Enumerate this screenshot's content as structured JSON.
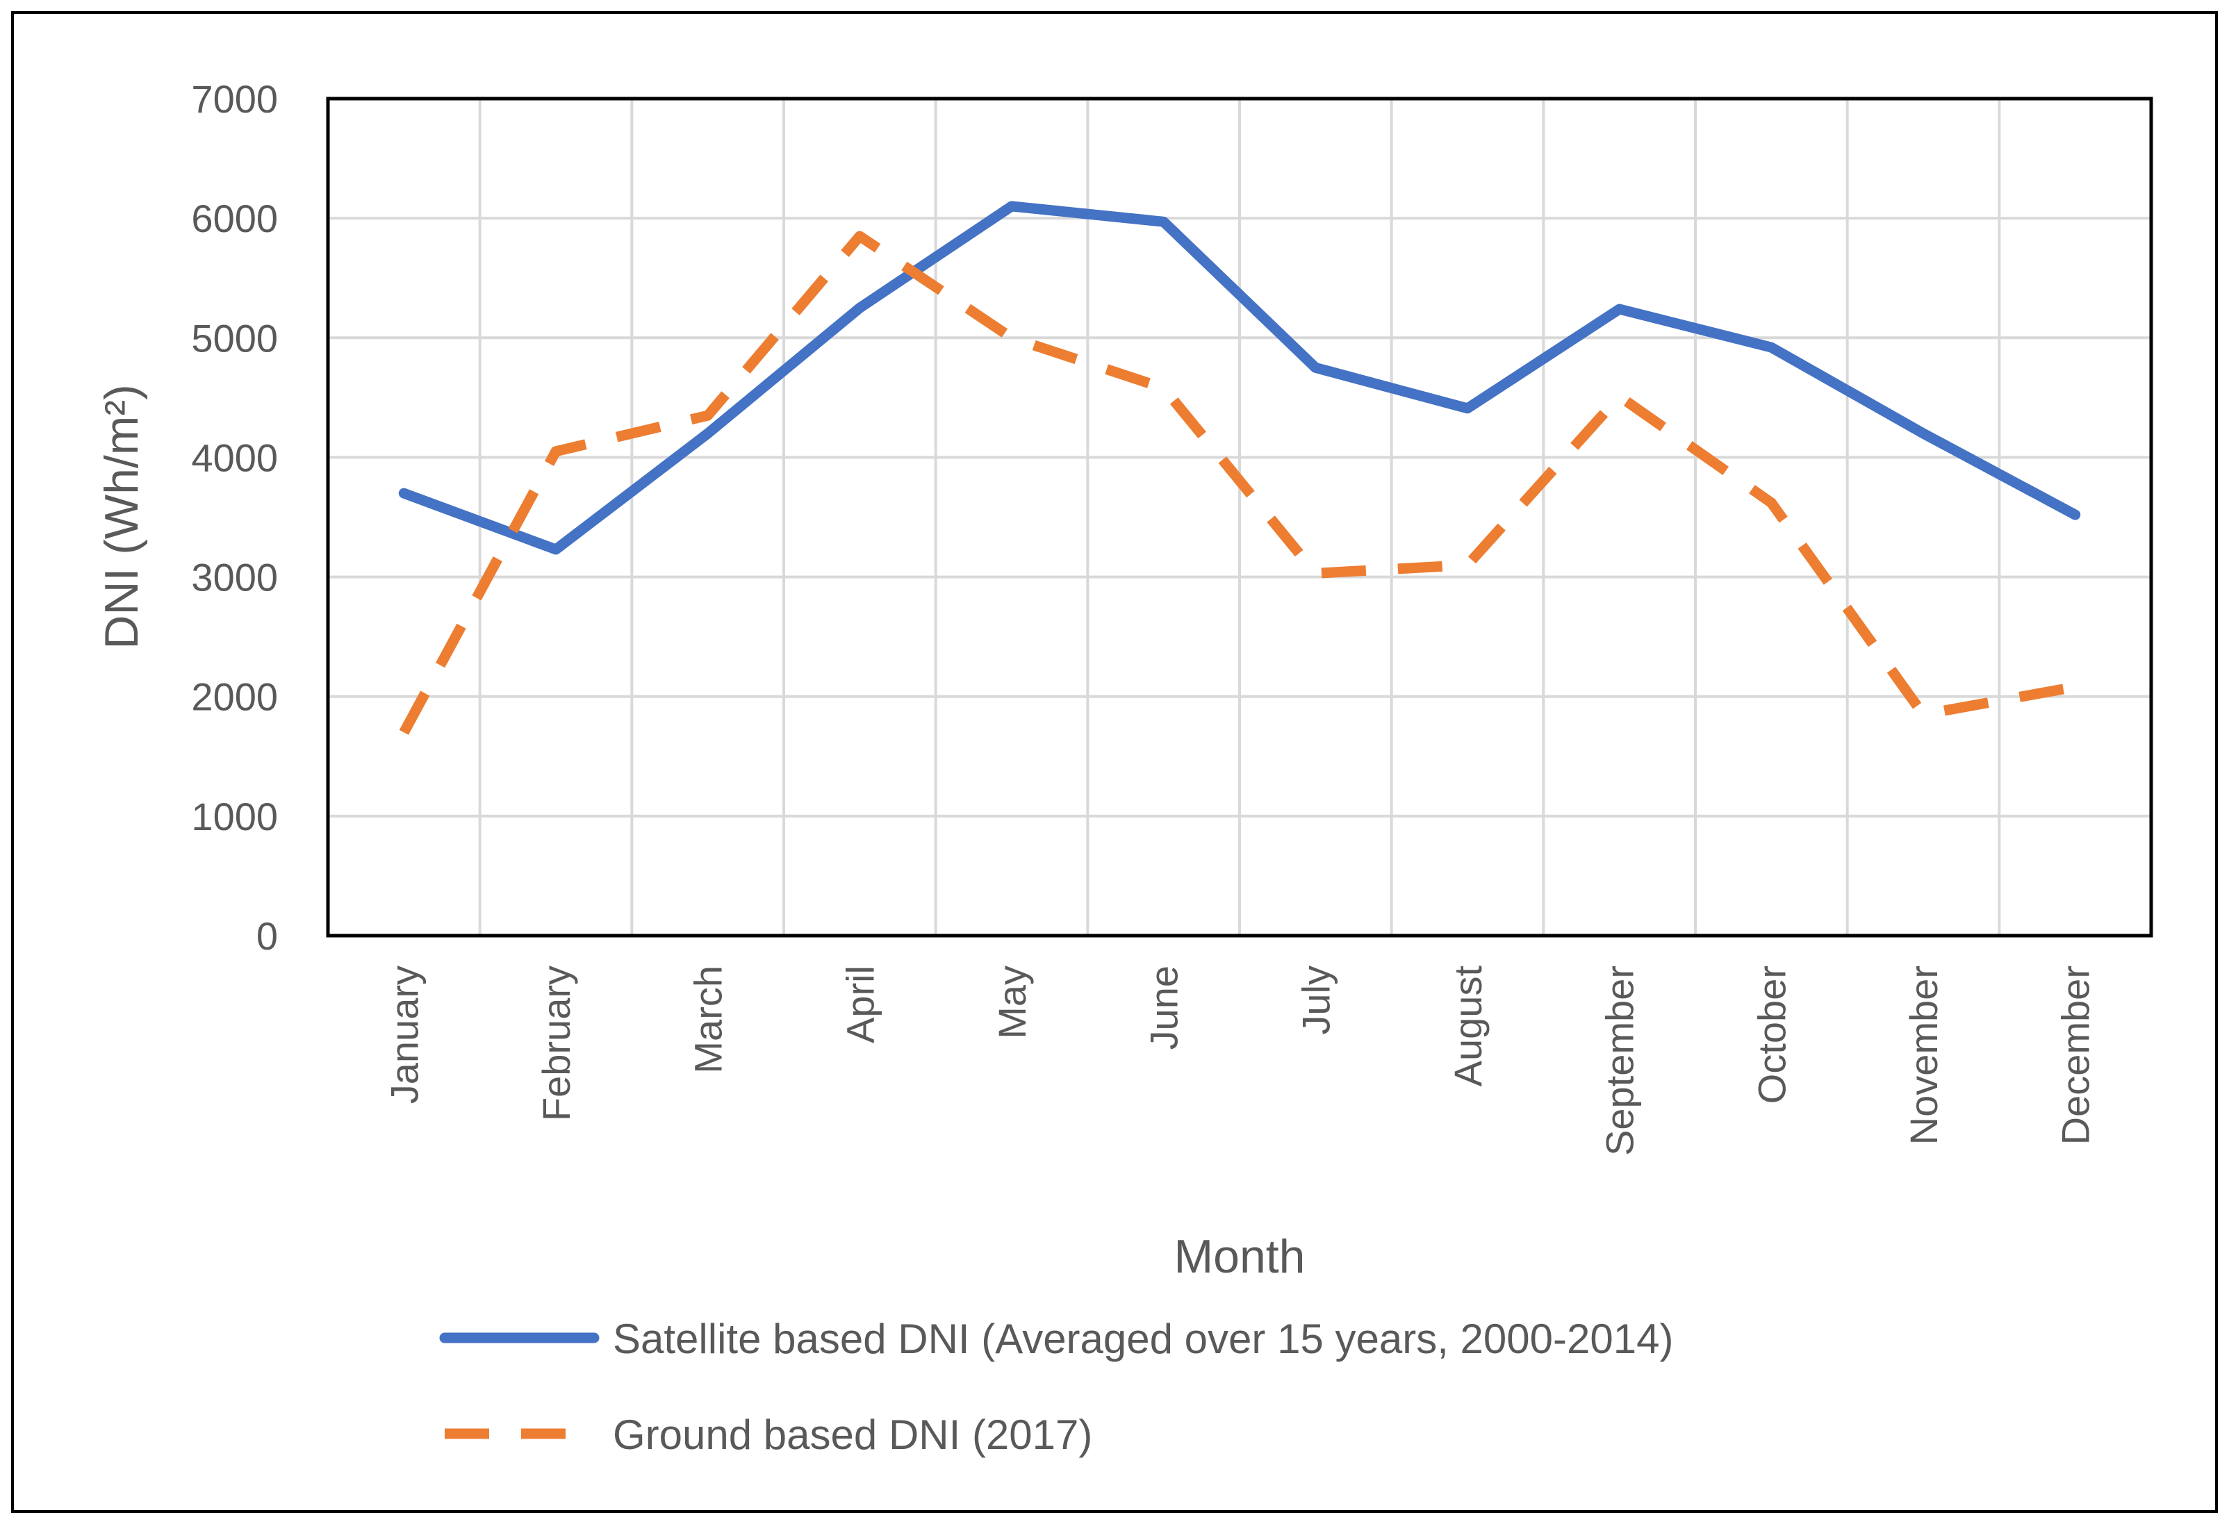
{
  "chart_data": {
    "type": "line",
    "title": "",
    "xlabel": "Month",
    "ylabel": "DNI (Wh/m²)",
    "ylim": [
      0,
      7000
    ],
    "yticks": [
      0,
      1000,
      2000,
      3000,
      4000,
      5000,
      6000,
      7000
    ],
    "grid": true,
    "legend_position": "bottom",
    "categories": [
      "January",
      "February",
      "March",
      "April",
      "May",
      "June",
      "July",
      "August",
      "September",
      "October",
      "November",
      "December"
    ],
    "series": [
      {
        "name": "Satellite based DNI (Averaged over 15 years, 2000-2014)",
        "color": "#4472C4",
        "style": "solid",
        "values": [
          3700,
          3230,
          4200,
          5250,
          6100,
          5970,
          4750,
          4410,
          5240,
          4920,
          4200,
          3520
        ]
      },
      {
        "name": "Ground based DNI (2017)",
        "color": "#ED7D31",
        "style": "dashed",
        "values": [
          1700,
          4050,
          4350,
          5850,
          5000,
          4580,
          3030,
          3100,
          4510,
          3620,
          1850,
          2080
        ]
      }
    ]
  }
}
